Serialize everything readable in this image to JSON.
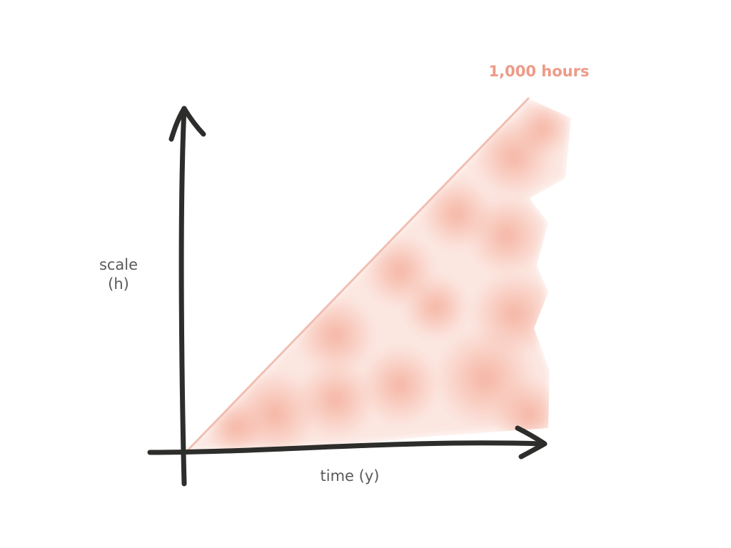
{
  "chart_data": {
    "type": "area",
    "title": "",
    "xlabel": "time (y)",
    "ylabel_line1": "scale",
    "ylabel_line2": "(h)",
    "series": [
      {
        "x": [
          0,
          1
        ],
        "y": [
          0,
          1
        ]
      }
    ],
    "annotation": "1,000 hours",
    "grid": false,
    "legend": "none",
    "colors": {
      "axis": "#2d2d2b",
      "fill": "#f3a48f",
      "boundary_line": "#f0b5a5",
      "annotation": "#ee9a88",
      "label": "#5a5a5a"
    }
  }
}
